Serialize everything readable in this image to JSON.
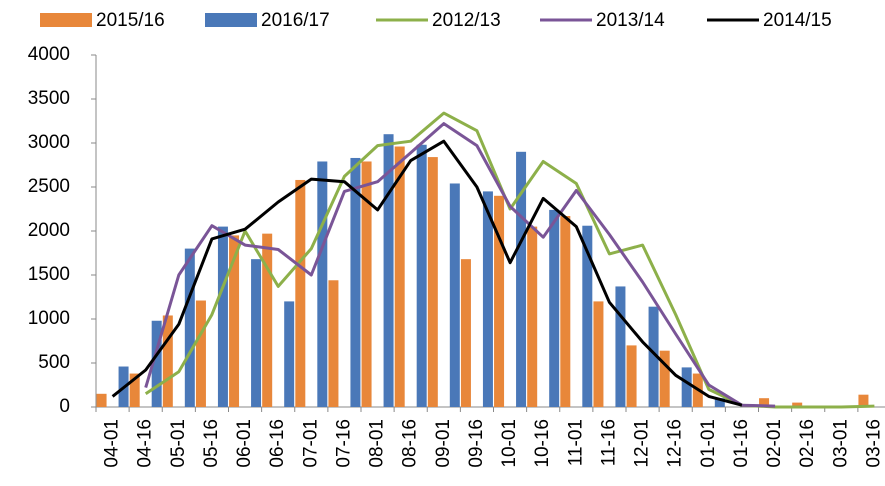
{
  "chart_data": {
    "type": "combo",
    "categories": [
      "04-01",
      "04-16",
      "05-01",
      "05-16",
      "06-01",
      "06-16",
      "07-01",
      "07-16",
      "08-01",
      "08-16",
      "09-01",
      "09-16",
      "10-01",
      "10-16",
      "11-01",
      "11-16",
      "12-01",
      "12-16",
      "01-01",
      "01-16",
      "02-01",
      "02-16",
      "03-01",
      "03-16"
    ],
    "series": [
      {
        "name": "2015/16",
        "type": "bar",
        "color": "#e8873a",
        "values": [
          150,
          380,
          1040,
          1210,
          1950,
          1970,
          2580,
          1440,
          2790,
          2960,
          2840,
          1680,
          2400,
          2050,
          2170,
          1200,
          700,
          640,
          380,
          0,
          100,
          50,
          0,
          140
        ]
      },
      {
        "name": "2016/17",
        "type": "bar",
        "color": "#4a78b8",
        "values": [
          460,
          980,
          1800,
          2050,
          1680,
          1200,
          2790,
          2830,
          3100,
          2980,
          2540,
          2450,
          2900,
          2240,
          2060,
          1370,
          1140,
          450,
          100,
          null,
          null,
          null,
          null,
          null
        ]
      },
      {
        "name": "2012/13",
        "type": "line",
        "color": "#8db04a",
        "values": [
          null,
          150,
          400,
          1050,
          2000,
          1370,
          1800,
          2620,
          2970,
          3020,
          3340,
          3140,
          2250,
          2790,
          2540,
          1740,
          1840,
          1050,
          200,
          20,
          0,
          0,
          0,
          10
        ]
      },
      {
        "name": "2013/14",
        "type": "line",
        "color": "#7a5597",
        "values": [
          null,
          220,
          1500,
          2060,
          1840,
          1790,
          1500,
          2450,
          2560,
          2890,
          3220,
          2970,
          2280,
          1930,
          2460,
          1960,
          1420,
          830,
          250,
          20,
          10,
          null,
          null,
          null
        ]
      },
      {
        "name": "2014/15",
        "type": "line",
        "color": "#000000",
        "values": [
          120,
          420,
          940,
          1910,
          2020,
          2330,
          2590,
          2560,
          2240,
          2800,
          3020,
          2500,
          1640,
          2370,
          2050,
          1190,
          740,
          360,
          120,
          20,
          null,
          null,
          null,
          null
        ]
      }
    ],
    "ylim": [
      0,
      4000
    ],
    "yticks": [
      0,
      500,
      1000,
      1500,
      2000,
      2500,
      3000,
      3500,
      4000
    ],
    "grid": false
  }
}
